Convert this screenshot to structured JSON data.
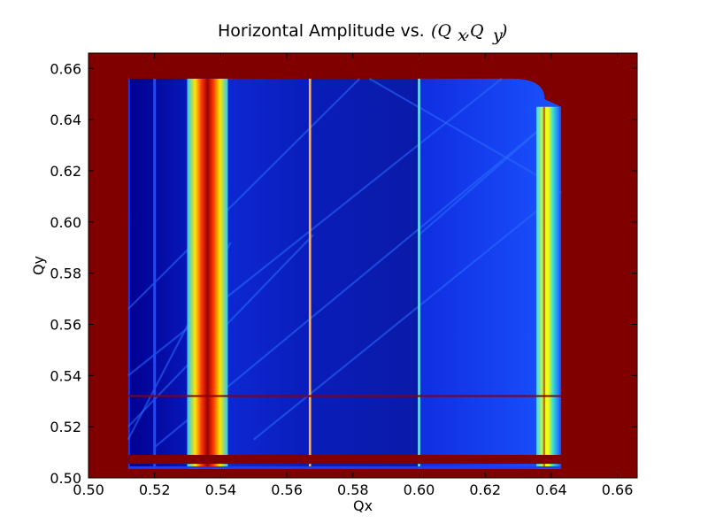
{
  "chart_data": {
    "type": "heatmap",
    "title_text": "Horizontal Amplitude vs. ",
    "title_math": "(Q",
    "title_math_x": "x",
    "title_math_sep": ",Q",
    "title_math_y": "y",
    "title_math_end": ")",
    "xlabel": "Qx",
    "ylabel": "Qy",
    "xlim": [
      0.5,
      0.666
    ],
    "ylim": [
      0.5,
      0.666
    ],
    "xticks": [
      "0.50",
      "0.52",
      "0.54",
      "0.56",
      "0.58",
      "0.60",
      "0.62",
      "0.64",
      "0.66"
    ],
    "yticks": [
      "0.50",
      "0.52",
      "0.54",
      "0.56",
      "0.58",
      "0.60",
      "0.62",
      "0.64",
      "0.66"
    ],
    "xtick_values": [
      0.5,
      0.52,
      0.54,
      0.56,
      0.58,
      0.6,
      0.62,
      0.64,
      0.66
    ],
    "ytick_values": [
      0.5,
      0.52,
      0.54,
      0.56,
      0.58,
      0.6,
      0.62,
      0.64,
      0.66
    ],
    "colormap": "jet",
    "background_color": "#800000",
    "data_region": {
      "x_range": [
        0.512,
        0.643
      ],
      "y_range": [
        0.5035,
        0.656
      ]
    },
    "resonance_lines_vertical": [
      {
        "qx": 0.52,
        "color": "#1d4cff",
        "width": 0.0008
      },
      {
        "qx": 0.536,
        "color": "#ff3000",
        "width": 0.0028,
        "core": "#a00000"
      },
      {
        "qx": 0.567,
        "color": "#ffb04a",
        "width": 0.0007
      },
      {
        "qx": 0.6,
        "color": "#5fe6e6",
        "width": 0.0007
      }
    ],
    "horizontal_line_qy": 0.532,
    "bottom_band_qy": [
      0.5055,
      0.509
    ]
  }
}
